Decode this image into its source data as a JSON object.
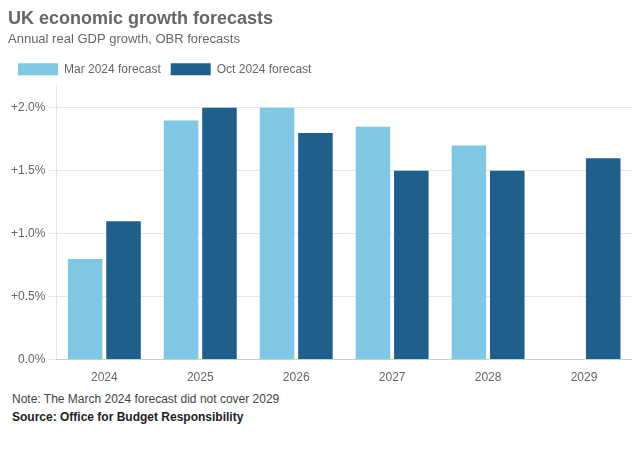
{
  "chart_data": {
    "type": "bar",
    "title": "UK economic growth forecasts",
    "subtitle": "Annual real GDP growth, OBR forecasts",
    "categories": [
      "2024",
      "2025",
      "2026",
      "2027",
      "2028",
      "2029"
    ],
    "series": [
      {
        "name": "Mar 2024 forecast",
        "color": "#7ec8e3",
        "values": [
          0.8,
          1.9,
          2.0,
          1.85,
          1.7,
          null
        ]
      },
      {
        "name": "Oct 2024 forecast",
        "color": "#1f5f8b",
        "values": [
          1.1,
          2.0,
          1.8,
          1.5,
          1.5,
          1.6
        ]
      }
    ],
    "ylim": [
      0,
      2.18
    ],
    "yticks": [
      {
        "value": 0.0,
        "label": "0.0%"
      },
      {
        "value": 0.5,
        "label": "+0.5%"
      },
      {
        "value": 1.0,
        "label": "+1.0%"
      },
      {
        "value": 1.5,
        "label": "+1.5%"
      },
      {
        "value": 2.0,
        "label": "+2.0%"
      }
    ],
    "grid": true,
    "legend": "top",
    "annotations": [
      "Note: The March 2024 forecast did not cover 2029",
      "Source: Office for Budget Responsibility"
    ]
  }
}
